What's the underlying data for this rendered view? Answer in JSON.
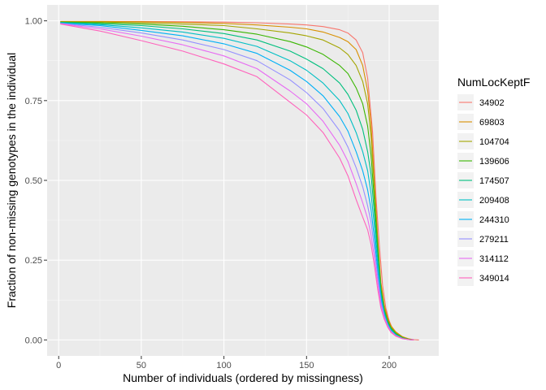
{
  "chart_data": {
    "type": "line",
    "title": "",
    "xlabel": "Number of individuals (ordered by missingness)",
    "ylabel": "Fraction of non-missing genotypes in the individual",
    "xlim": [
      -7,
      230
    ],
    "ylim": [
      -0.05,
      1.05
    ],
    "x_ticks": [
      0,
      50,
      100,
      150,
      200
    ],
    "x_tick_labels": [
      "0",
      "50",
      "100",
      "150",
      "200"
    ],
    "y_ticks": [
      0,
      0.25,
      0.5,
      0.75,
      1.0
    ],
    "y_tick_labels": [
      "0.00",
      "0.25",
      "0.50",
      "0.75",
      "1.00"
    ],
    "grid": true,
    "legend_position": "right",
    "legend_title": "NumLocKeptF",
    "series": [
      {
        "name": "34902",
        "color": "#F8766D",
        "points": [
          [
            1,
            0.998
          ],
          [
            25,
            0.998
          ],
          [
            50,
            0.998
          ],
          [
            75,
            0.997
          ],
          [
            100,
            0.996
          ],
          [
            120,
            0.994
          ],
          [
            140,
            0.99
          ],
          [
            150,
            0.987
          ],
          [
            160,
            0.982
          ],
          [
            170,
            0.972
          ],
          [
            175,
            0.962
          ],
          [
            180,
            0.94
          ],
          [
            184,
            0.9
          ],
          [
            187,
            0.82
          ],
          [
            190,
            0.65
          ],
          [
            192,
            0.45
          ],
          [
            194,
            0.3
          ],
          [
            196,
            0.17
          ],
          [
            198,
            0.1
          ],
          [
            200,
            0.06
          ],
          [
            202,
            0.035
          ],
          [
            205,
            0.018
          ],
          [
            210,
            0.005
          ],
          [
            215,
            0.001
          ],
          [
            218,
            0.0
          ]
        ]
      },
      {
        "name": "69803",
        "color": "#D89000",
        "points": [
          [
            1,
            0.998
          ],
          [
            25,
            0.998
          ],
          [
            50,
            0.997
          ],
          [
            75,
            0.995
          ],
          [
            100,
            0.992
          ],
          [
            120,
            0.987
          ],
          [
            140,
            0.98
          ],
          [
            150,
            0.975
          ],
          [
            160,
            0.965
          ],
          [
            170,
            0.948
          ],
          [
            175,
            0.935
          ],
          [
            180,
            0.91
          ],
          [
            184,
            0.86
          ],
          [
            187,
            0.78
          ],
          [
            189,
            0.68
          ],
          [
            191,
            0.5
          ],
          [
            193,
            0.32
          ],
          [
            195,
            0.18
          ],
          [
            197,
            0.11
          ],
          [
            199,
            0.07
          ],
          [
            201,
            0.045
          ],
          [
            204,
            0.025
          ],
          [
            208,
            0.01
          ],
          [
            212,
            0.003
          ],
          [
            215,
            0.0
          ]
        ]
      },
      {
        "name": "104704",
        "color": "#A3A500",
        "points": [
          [
            1,
            0.997
          ],
          [
            25,
            0.996
          ],
          [
            50,
            0.994
          ],
          [
            75,
            0.99
          ],
          [
            100,
            0.985
          ],
          [
            120,
            0.975
          ],
          [
            140,
            0.962
          ],
          [
            150,
            0.953
          ],
          [
            160,
            0.94
          ],
          [
            170,
            0.915
          ],
          [
            175,
            0.895
          ],
          [
            180,
            0.86
          ],
          [
            184,
            0.81
          ],
          [
            187,
            0.74
          ],
          [
            189,
            0.64
          ],
          [
            191,
            0.48
          ],
          [
            193,
            0.31
          ],
          [
            195,
            0.17
          ],
          [
            197,
            0.1
          ],
          [
            199,
            0.065
          ],
          [
            201,
            0.04
          ],
          [
            204,
            0.022
          ],
          [
            208,
            0.008
          ],
          [
            212,
            0.002
          ],
          [
            215,
            0.0
          ]
        ]
      },
      {
        "name": "139606",
        "color": "#39B600",
        "points": [
          [
            1,
            0.996
          ],
          [
            25,
            0.994
          ],
          [
            50,
            0.99
          ],
          [
            75,
            0.983
          ],
          [
            100,
            0.972
          ],
          [
            120,
            0.958
          ],
          [
            140,
            0.935
          ],
          [
            150,
            0.918
          ],
          [
            160,
            0.895
          ],
          [
            170,
            0.86
          ],
          [
            175,
            0.835
          ],
          [
            180,
            0.79
          ],
          [
            184,
            0.74
          ],
          [
            187,
            0.67
          ],
          [
            189,
            0.58
          ],
          [
            191,
            0.44
          ],
          [
            193,
            0.29
          ],
          [
            195,
            0.16
          ],
          [
            197,
            0.095
          ],
          [
            199,
            0.06
          ],
          [
            201,
            0.038
          ],
          [
            204,
            0.02
          ],
          [
            208,
            0.007
          ],
          [
            212,
            0.002
          ],
          [
            215,
            0.0
          ]
        ]
      },
      {
        "name": "174507",
        "color": "#00BF7D",
        "points": [
          [
            1,
            0.995
          ],
          [
            25,
            0.991
          ],
          [
            50,
            0.985
          ],
          [
            75,
            0.975
          ],
          [
            100,
            0.96
          ],
          [
            120,
            0.94
          ],
          [
            140,
            0.905
          ],
          [
            150,
            0.88
          ],
          [
            160,
            0.85
          ],
          [
            170,
            0.805
          ],
          [
            175,
            0.77
          ],
          [
            180,
            0.72
          ],
          [
            184,
            0.66
          ],
          [
            187,
            0.59
          ],
          [
            189,
            0.52
          ],
          [
            191,
            0.4
          ],
          [
            193,
            0.27
          ],
          [
            195,
            0.15
          ],
          [
            197,
            0.09
          ],
          [
            199,
            0.055
          ],
          [
            201,
            0.035
          ],
          [
            204,
            0.018
          ],
          [
            208,
            0.006
          ],
          [
            212,
            0.001
          ],
          [
            215,
            0.0
          ]
        ]
      },
      {
        "name": "209408",
        "color": "#00BFC4",
        "points": [
          [
            1,
            0.994
          ],
          [
            25,
            0.988
          ],
          [
            50,
            0.978
          ],
          [
            75,
            0.965
          ],
          [
            100,
            0.945
          ],
          [
            120,
            0.92
          ],
          [
            140,
            0.875
          ],
          [
            150,
            0.845
          ],
          [
            160,
            0.805
          ],
          [
            170,
            0.75
          ],
          [
            175,
            0.71
          ],
          [
            180,
            0.65
          ],
          [
            184,
            0.59
          ],
          [
            187,
            0.53
          ],
          [
            189,
            0.46
          ],
          [
            191,
            0.36
          ],
          [
            193,
            0.24
          ],
          [
            195,
            0.14
          ],
          [
            197,
            0.085
          ],
          [
            199,
            0.052
          ],
          [
            201,
            0.032
          ],
          [
            204,
            0.016
          ],
          [
            208,
            0.005
          ],
          [
            212,
            0.001
          ],
          [
            215,
            0.0
          ]
        ]
      },
      {
        "name": "244310",
        "color": "#00B0F6",
        "points": [
          [
            1,
            0.993
          ],
          [
            25,
            0.985
          ],
          [
            50,
            0.97
          ],
          [
            75,
            0.953
          ],
          [
            100,
            0.928
          ],
          [
            120,
            0.898
          ],
          [
            140,
            0.845
          ],
          [
            150,
            0.81
          ],
          [
            160,
            0.765
          ],
          [
            170,
            0.7
          ],
          [
            175,
            0.655
          ],
          [
            180,
            0.59
          ],
          [
            184,
            0.53
          ],
          [
            187,
            0.47
          ],
          [
            189,
            0.41
          ],
          [
            191,
            0.32
          ],
          [
            193,
            0.22
          ],
          [
            195,
            0.13
          ],
          [
            197,
            0.08
          ],
          [
            199,
            0.05
          ],
          [
            201,
            0.03
          ],
          [
            204,
            0.015
          ],
          [
            208,
            0.005
          ],
          [
            212,
            0.001
          ],
          [
            215,
            0.0
          ]
        ]
      },
      {
        "name": "279211",
        "color": "#9590FF",
        "points": [
          [
            1,
            0.992
          ],
          [
            25,
            0.98
          ],
          [
            50,
            0.962
          ],
          [
            75,
            0.94
          ],
          [
            100,
            0.91
          ],
          [
            120,
            0.875
          ],
          [
            140,
            0.815
          ],
          [
            150,
            0.775
          ],
          [
            160,
            0.725
          ],
          [
            170,
            0.655
          ],
          [
            175,
            0.605
          ],
          [
            180,
            0.54
          ],
          [
            184,
            0.48
          ],
          [
            187,
            0.42
          ],
          [
            189,
            0.37
          ],
          [
            191,
            0.29
          ],
          [
            193,
            0.2
          ],
          [
            195,
            0.12
          ],
          [
            197,
            0.075
          ],
          [
            199,
            0.047
          ],
          [
            201,
            0.028
          ],
          [
            204,
            0.014
          ],
          [
            208,
            0.004
          ],
          [
            212,
            0.001
          ],
          [
            215,
            0.0
          ]
        ]
      },
      {
        "name": "314112",
        "color": "#E76BF3",
        "points": [
          [
            1,
            0.991
          ],
          [
            25,
            0.975
          ],
          [
            50,
            0.952
          ],
          [
            75,
            0.925
          ],
          [
            100,
            0.89
          ],
          [
            120,
            0.85
          ],
          [
            140,
            0.78
          ],
          [
            150,
            0.74
          ],
          [
            160,
            0.685
          ],
          [
            170,
            0.61
          ],
          [
            175,
            0.56
          ],
          [
            180,
            0.49
          ],
          [
            184,
            0.43
          ],
          [
            187,
            0.38
          ],
          [
            189,
            0.33
          ],
          [
            191,
            0.26
          ],
          [
            193,
            0.18
          ],
          [
            195,
            0.11
          ],
          [
            197,
            0.07
          ],
          [
            199,
            0.044
          ],
          [
            201,
            0.026
          ],
          [
            204,
            0.013
          ],
          [
            208,
            0.004
          ],
          [
            212,
            0.001
          ],
          [
            215,
            0.0
          ]
        ]
      },
      {
        "name": "349014",
        "color": "#FF62BC",
        "points": [
          [
            1,
            0.99
          ],
          [
            25,
            0.968
          ],
          [
            50,
            0.938
          ],
          [
            75,
            0.905
          ],
          [
            100,
            0.865
          ],
          [
            120,
            0.825
          ],
          [
            140,
            0.745
          ],
          [
            150,
            0.705
          ],
          [
            160,
            0.65
          ],
          [
            170,
            0.57
          ],
          [
            175,
            0.515
          ],
          [
            180,
            0.44
          ],
          [
            184,
            0.385
          ],
          [
            187,
            0.345
          ],
          [
            189,
            0.3
          ],
          [
            191,
            0.235
          ],
          [
            193,
            0.16
          ],
          [
            195,
            0.1
          ],
          [
            197,
            0.065
          ],
          [
            199,
            0.041
          ],
          [
            201,
            0.024
          ],
          [
            204,
            0.012
          ],
          [
            208,
            0.004
          ],
          [
            212,
            0.001
          ],
          [
            215,
            0.0
          ]
        ]
      }
    ]
  }
}
